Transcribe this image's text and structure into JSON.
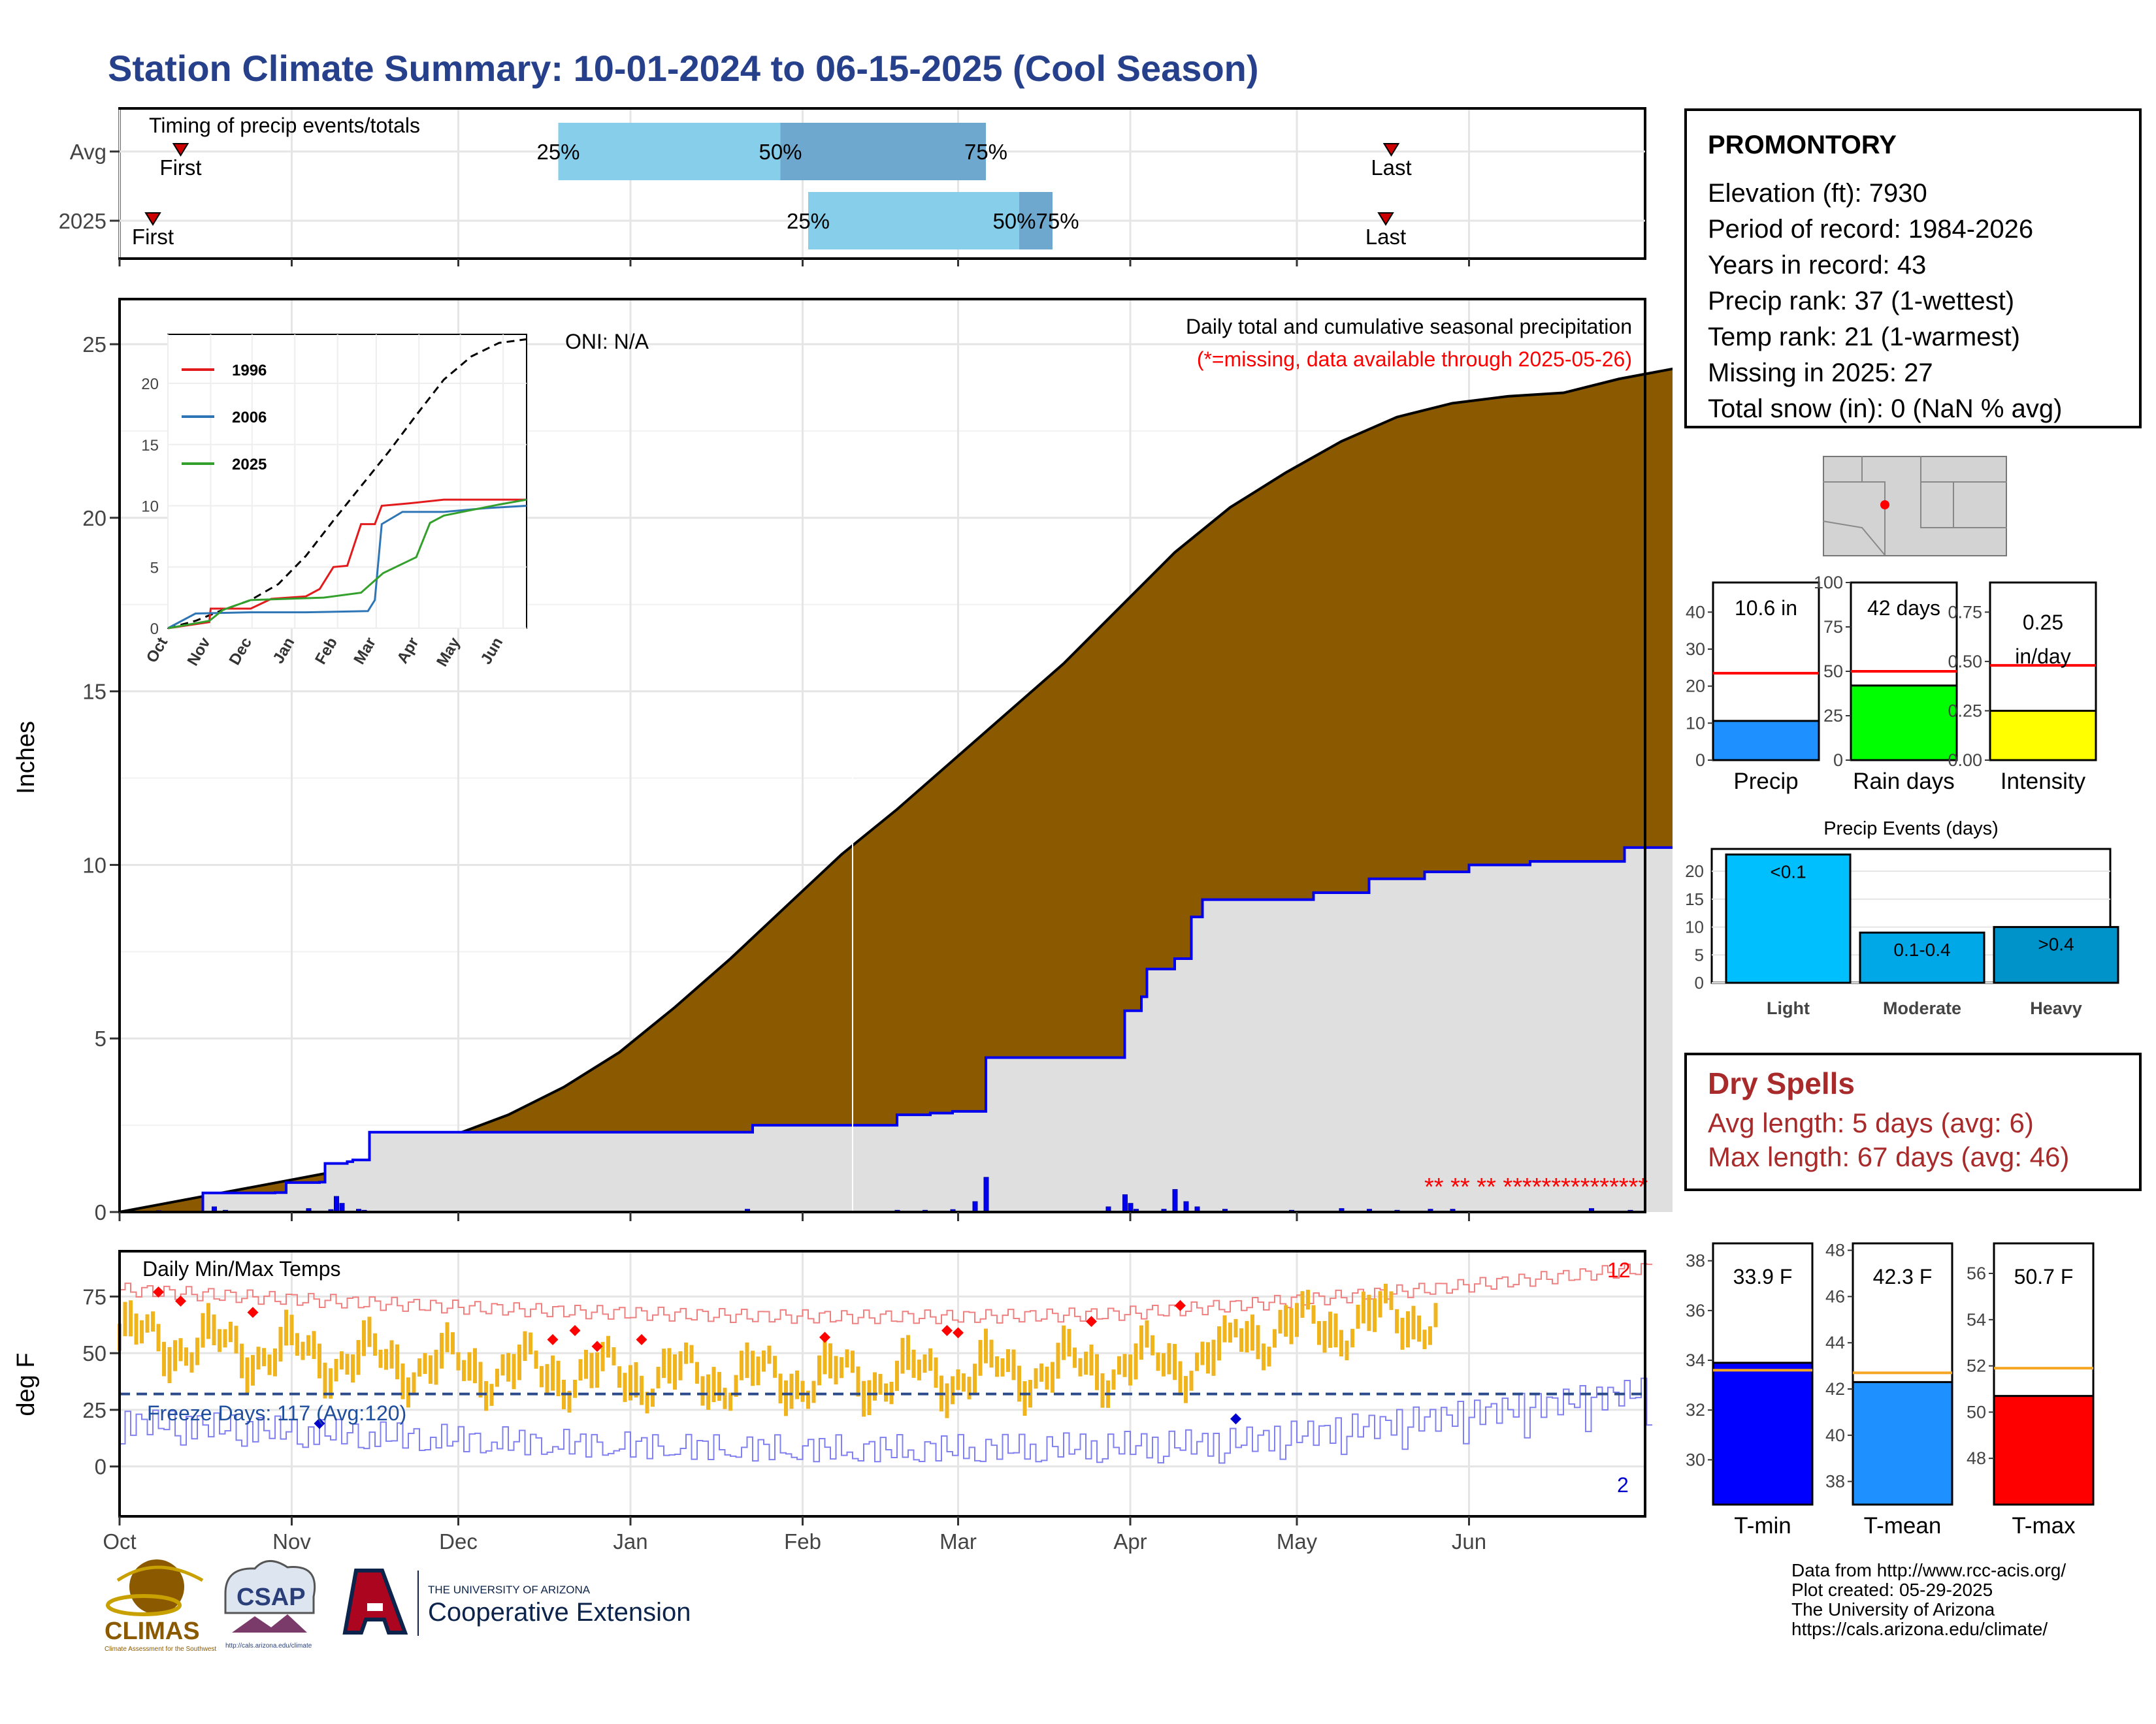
{
  "title": "Station Climate Summary: 10-01-2024 to 06-15-2025 (Cool Season)",
  "station": {
    "name": "PROMONTORY",
    "lines": [
      "Elevation (ft): 7930",
      "Period of record: 1984-2026",
      "Years in record: 43",
      "Precip rank: 37 (1-wettest)",
      "Temp rank: 21 (1-warmest)",
      "Missing in 2025: 27",
      "Total snow (in): 0 (NaN % avg)"
    ]
  },
  "timing": {
    "title": "Timing of precip events/totals",
    "rows": [
      "Avg",
      "2025"
    ],
    "first_label": "First",
    "last_label": "Last",
    "p25": "25%",
    "p50": "50%",
    "p75": "75%",
    "p5075": "50%75%",
    "avg": {
      "first": "2024-10-12",
      "q25": "2024-12-19",
      "q50": "2025-01-28",
      "q75": "2025-03-06",
      "last": "2025-05-18"
    },
    "y2025": {
      "first": "2024-10-07",
      "q25": "2025-02-02",
      "q50": "2025-03-12",
      "q75": "2025-03-18",
      "last": "2025-05-17"
    }
  },
  "months": [
    "Oct",
    "Nov",
    "Dec",
    "Jan",
    "Feb",
    "Mar",
    "Apr",
    "May",
    "Jun"
  ],
  "main": {
    "ylabel": "Inches",
    "yticks": [
      "0",
      "5",
      "10",
      "15",
      "20",
      "25"
    ],
    "note1": "Daily total and cumulative seasonal precipitation",
    "note2": "(*=missing, data available through 2025-05-26)",
    "oni": "ONI: N/A",
    "avg_cum": [
      [
        0,
        0
      ],
      [
        10,
        0.3
      ],
      [
        20,
        0.6
      ],
      [
        30,
        0.9
      ],
      [
        40,
        1.2
      ],
      [
        50,
        1.6
      ],
      [
        60,
        2.2
      ],
      [
        70,
        2.8
      ],
      [
        80,
        3.6
      ],
      [
        90,
        4.6
      ],
      [
        100,
        5.9
      ],
      [
        110,
        7.3
      ],
      [
        120,
        8.8
      ],
      [
        130,
        10.3
      ],
      [
        140,
        11.6
      ],
      [
        150,
        13.0
      ],
      [
        160,
        14.4
      ],
      [
        170,
        15.8
      ],
      [
        180,
        17.4
      ],
      [
        190,
        19.0
      ],
      [
        200,
        20.3
      ],
      [
        210,
        21.3
      ],
      [
        220,
        22.2
      ],
      [
        230,
        22.9
      ],
      [
        240,
        23.3
      ],
      [
        250,
        23.5
      ],
      [
        260,
        23.6
      ],
      [
        270,
        24.0
      ],
      [
        280,
        24.3
      ],
      [
        290,
        24.4
      ],
      [
        297,
        24.5
      ]
    ],
    "cum2025": [
      [
        0,
        0
      ],
      [
        14,
        0
      ],
      [
        15,
        0.55
      ],
      [
        28,
        0.56
      ],
      [
        30,
        0.85
      ],
      [
        36,
        0.86
      ],
      [
        37,
        1.4
      ],
      [
        41,
        1.45
      ],
      [
        42,
        1.5
      ],
      [
        45,
        2.3
      ],
      [
        95,
        2.3
      ],
      [
        113,
        2.3
      ],
      [
        114,
        2.5
      ],
      [
        130,
        2.5
      ],
      [
        140,
        2.8
      ],
      [
        146,
        2.85
      ],
      [
        150,
        2.9
      ],
      [
        156,
        4.45
      ],
      [
        178,
        4.45
      ],
      [
        181,
        5.8
      ],
      [
        184,
        6.2
      ],
      [
        185,
        7.0
      ],
      [
        190,
        7.3
      ],
      [
        193,
        8.5
      ],
      [
        195,
        9.0
      ],
      [
        205,
        9.0
      ],
      [
        215,
        9.2
      ],
      [
        225,
        9.6
      ],
      [
        235,
        9.8
      ],
      [
        243,
        10.0
      ],
      [
        254,
        10.1
      ],
      [
        264,
        10.1
      ],
      [
        271,
        10.5
      ],
      [
        297,
        10.5
      ]
    ],
    "bars": [
      [
        7,
        0.04
      ],
      [
        17,
        0.15
      ],
      [
        19,
        0.05
      ],
      [
        34,
        0.1
      ],
      [
        38,
        0.07
      ],
      [
        39,
        0.45
      ],
      [
        40,
        0.25
      ],
      [
        43,
        0.08
      ],
      [
        44,
        0.05
      ],
      [
        113,
        0.08
      ],
      [
        140,
        0.05
      ],
      [
        145,
        0.05
      ],
      [
        150,
        0.07
      ],
      [
        154,
        0.3
      ],
      [
        156,
        1.0
      ],
      [
        178,
        0.15
      ],
      [
        181,
        0.5
      ],
      [
        182,
        0.25
      ],
      [
        183,
        0.08
      ],
      [
        188,
        0.08
      ],
      [
        190,
        0.65
      ],
      [
        192,
        0.3
      ],
      [
        194,
        0.15
      ],
      [
        199,
        0.08
      ],
      [
        211,
        0.05
      ],
      [
        220,
        0.1
      ],
      [
        225,
        0.08
      ],
      [
        230,
        0.05
      ],
      [
        236,
        0.08
      ],
      [
        240,
        0.08
      ],
      [
        265,
        0.1
      ],
      [
        272,
        0.05
      ]
    ],
    "missing_marks": "** ** ** ***************"
  },
  "inset": {
    "series": [
      {
        "name": "1996",
        "color": "#e31a1c"
      },
      {
        "name": "2006",
        "color": "#2e75b6"
      },
      {
        "name": "2025",
        "color": "#33a02c"
      }
    ],
    "yticks": [
      "0",
      "5",
      "10",
      "15",
      "20"
    ],
    "months": [
      "Oct",
      "Nov",
      "Dec",
      "Jan",
      "Feb",
      "Mar",
      "Apr",
      "May",
      "Jun"
    ]
  },
  "gauges": {
    "precip": {
      "label": "Precip",
      "value_text": "10.6 in",
      "value": 10.6,
      "avg": 23.5,
      "max": 48,
      "ticks": [
        "0",
        "10",
        "20",
        "30",
        "40"
      ],
      "color": "#1e90ff"
    },
    "raindays": {
      "label": "Rain days",
      "value_text": "42 days",
      "value": 42,
      "avg": 50,
      "max": 100,
      "ticks": [
        "0",
        "25",
        "50",
        "75",
        "100"
      ],
      "color": "#00ff00"
    },
    "intensity": {
      "label": "Intensity",
      "value_text": "0.25",
      "value_text2": "in/day",
      "value": 0.25,
      "avg": 0.48,
      "max": 0.9,
      "ticks": [
        "0.00",
        "0.25",
        "0.50",
        "0.75"
      ],
      "color": "#ffff00"
    }
  },
  "events": {
    "title": "Precip Events (days)",
    "categories": [
      "Light",
      "Moderate",
      "Heavy"
    ],
    "labels": [
      "<0.1",
      "0.1-0.4",
      ">0.4"
    ],
    "values": [
      23,
      9,
      10
    ],
    "yticks": [
      "0",
      "5",
      "10",
      "15",
      "20"
    ],
    "colors": [
      "#00bfff",
      "#00a8e8",
      "#0093c9"
    ]
  },
  "dry": {
    "title": "Dry Spells",
    "avg": "Avg length: 5 days (avg: 6)",
    "max": "Max length: 67 days (avg: 46)"
  },
  "temp": {
    "ylabel": "deg F",
    "title": "Daily Min/Max Temps",
    "freeze": "Freeze Days: 117 (Avg:120)",
    "yticks": [
      "0",
      "25",
      "50",
      "75"
    ],
    "rec_hi": "12",
    "rec_lo": "2"
  },
  "tgauges": {
    "tmin": {
      "label": "T-min",
      "value_text": "33.9 F",
      "value": 33.9,
      "avg": 33.6,
      "ymin": 28.2,
      "ymax": 38.7,
      "ticks": [
        "30",
        "32",
        "34",
        "36",
        "38"
      ],
      "color": "#0000ff"
    },
    "tmean": {
      "label": "T-mean",
      "value_text": "42.3 F",
      "value": 42.3,
      "avg": 42.7,
      "ymin": 37.0,
      "ymax": 48.3,
      "ticks": [
        "38",
        "40",
        "42",
        "44",
        "46",
        "48"
      ],
      "color": "#1e90ff"
    },
    "tmax": {
      "label": "T-max",
      "value_text": "50.7 F",
      "value": 50.7,
      "avg": 51.9,
      "ymin": 46.0,
      "ymax": 57.3,
      "ticks": [
        "48",
        "50",
        "52",
        "54",
        "56"
      ],
      "color": "#ff0000"
    }
  },
  "logos": {
    "climas": "CLIMAS",
    "climas_sub": "Climate Assessment for the Southwest",
    "csap": "CSAP",
    "csap_sub": "http://cals.arizona.edu/climate",
    "ua_line1": "THE UNIVERSITY OF ARIZONA",
    "ua_line2": "Cooperative Extension"
  },
  "footer": [
    "Data from http://www.rcc-acis.org/",
    "Plot created: 05-29-2025",
    "The University of Arizona",
    "https://cals.arizona.edu/climate/"
  ]
}
